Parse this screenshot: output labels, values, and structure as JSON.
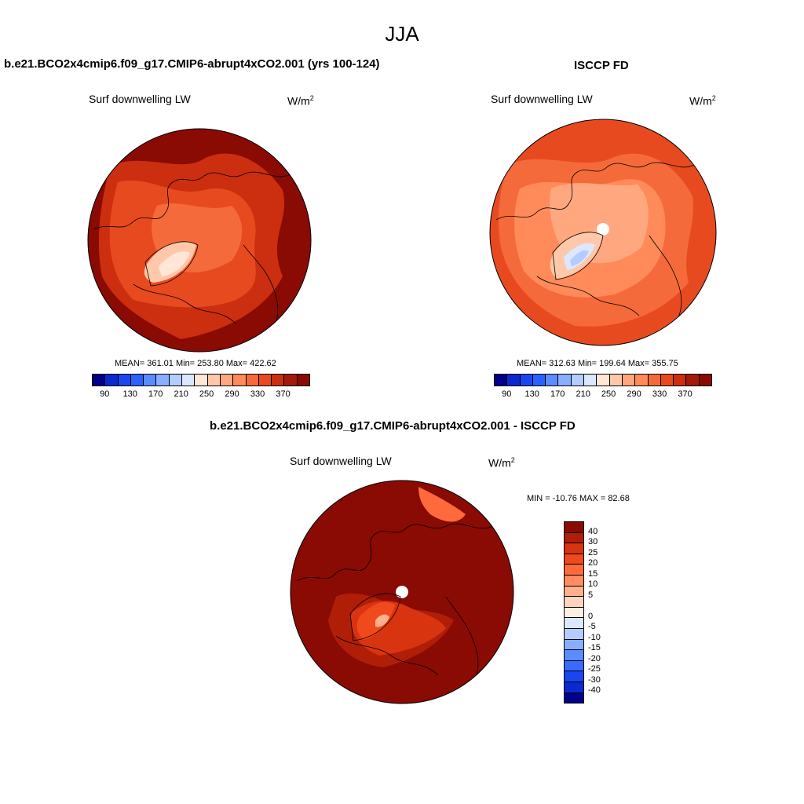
{
  "title": "JJA",
  "panels": {
    "model": {
      "case_title": "b.e21.BCO2x4cmip6.f09_g17.CMIP6-abrupt4xCO2.001 (yrs 100-124)",
      "field": "Surf downwelling LW",
      "units": "W/m",
      "units_sup": "2",
      "stats": "MEAN= 361.01  Min= 253.80  Max= 422.62"
    },
    "obs": {
      "case_title": "ISCCP FD",
      "field": "Surf downwelling LW",
      "units": "W/m",
      "units_sup": "2",
      "stats": "MEAN= 312.63  Min= 199.64  Max= 355.75"
    },
    "diff": {
      "case_title": "b.e21.BCO2x4cmip6.f09_g17.CMIP6-abrupt4xCO2.001 - ISCCP FD",
      "field": "Surf downwelling LW",
      "units": "W/m",
      "units_sup": "2",
      "stats": "MIN = -10.76 MAX =  82.68"
    }
  },
  "colorbars": {
    "abs": {
      "colors": [
        "#00008b",
        "#0a2ad0",
        "#1a46f0",
        "#2a62ff",
        "#5b8cff",
        "#8aaeff",
        "#b4ccff",
        "#dce8ff",
        "#ffe6d6",
        "#ffc8aa",
        "#ffa880",
        "#ff8a5a",
        "#f56a3a",
        "#e84a20",
        "#cc2e10",
        "#a41a08",
        "#8a0a04"
      ],
      "labels": [
        "90",
        "130",
        "170",
        "210",
        "250",
        "290",
        "330",
        "370"
      ]
    },
    "diff": {
      "colors": [
        "#8a0a04",
        "#b01e08",
        "#d83410",
        "#f04a1c",
        "#ff6a3c",
        "#ff8c62",
        "#ffb08c",
        "#ffd4bc",
        "#ffeee4",
        "#dce8ff",
        "#b4ccff",
        "#8aaeff",
        "#5b8cff",
        "#3a6aff",
        "#1a46f0",
        "#0a2ad0",
        "#00008b"
      ],
      "labels": [
        "40",
        "30",
        "25",
        "20",
        "15",
        "10",
        "5",
        "0",
        "-5",
        "-10",
        "-15",
        "-20",
        "-25",
        "-30",
        "-40"
      ]
    }
  },
  "map_fields": {
    "model": {
      "background": "#8a0a04",
      "regions": [
        "#cc2e10",
        "#e84a20",
        "#f56a3a",
        "#ffc8aa",
        "#ffe6d6"
      ]
    },
    "obs": {
      "background": "#e84a20",
      "regions": [
        "#f56a3a",
        "#ff8a5a",
        "#ffa880",
        "#ffc8aa",
        "#dce8ff",
        "#b4ccff"
      ]
    },
    "diff": {
      "background": "#8a0a04",
      "regions": [
        "#b01e08",
        "#d83410",
        "#f04a1c",
        "#ff6a3c",
        "#ffb08c"
      ]
    }
  }
}
